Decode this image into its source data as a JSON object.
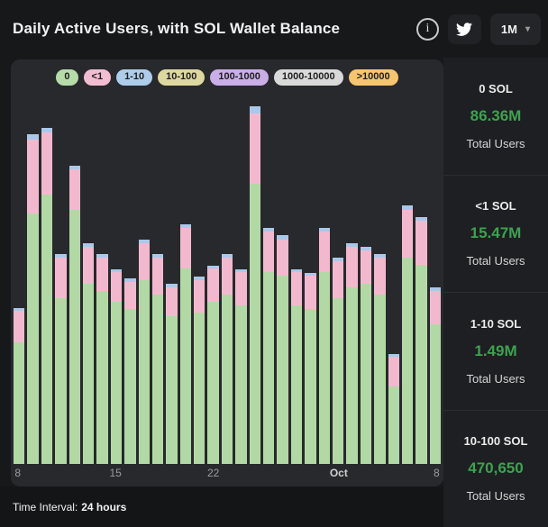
{
  "header": {
    "title": "Daily Active Users, with SOL Wallet Balance",
    "interval_dropdown": {
      "value": "1M",
      "chevron": "▾"
    }
  },
  "chart_data": {
    "type": "bar",
    "stacked": true,
    "title": "Daily Active Users, with SOL Wallet Balance",
    "grid": false,
    "legend_position": "top",
    "y_axis_visible": false,
    "unit": "percent of plot height (no y-axis tick labels shown in chart)",
    "x_range": [
      "Sep 8",
      "Oct 8"
    ],
    "legend": [
      {
        "label": "0",
        "color": "#b7dcaa"
      },
      {
        "label": "<1",
        "color": "#f3bdd1"
      },
      {
        "label": "1-10",
        "color": "#aecdea"
      },
      {
        "label": "10-100",
        "color": "#ddd8a0"
      },
      {
        "label": "100-1000",
        "color": "#c9aee8"
      },
      {
        "label": "1000-10000",
        "color": "#d9d9d9"
      },
      {
        "label": ">10000",
        "color": "#f6c571"
      }
    ],
    "series": [
      {
        "name": "0 SOL",
        "color": "#b2d9a5"
      },
      {
        "name": "<1 SOL",
        "color": "#f2b9ce"
      },
      {
        "name": "1-10 SOL",
        "color": "#a9c9ea"
      }
    ],
    "bars": [
      [
        33,
        8.5,
        0.8
      ],
      [
        68,
        20,
        1.5
      ],
      [
        73,
        17,
        1.2
      ],
      [
        45,
        11,
        0.9
      ],
      [
        69,
        11,
        1.0
      ],
      [
        49,
        10,
        0.9
      ],
      [
        47,
        9,
        0.9
      ],
      [
        44,
        8,
        0.8
      ],
      [
        42,
        7.5,
        0.8
      ],
      [
        50,
        10,
        0.9
      ],
      [
        46,
        10,
        0.9
      ],
      [
        40,
        8,
        0.8
      ],
      [
        53,
        11,
        1.0
      ],
      [
        41,
        9,
        0.8
      ],
      [
        44,
        9,
        0.9
      ],
      [
        46,
        10,
        0.9
      ],
      [
        43,
        9,
        0.8
      ],
      [
        76,
        19,
        2.0
      ],
      [
        52,
        11,
        1.0
      ],
      [
        51,
        10,
        1.0
      ],
      [
        43,
        9,
        0.9
      ],
      [
        42,
        9,
        0.8
      ],
      [
        52,
        11,
        1.0
      ],
      [
        45,
        10,
        0.9
      ],
      [
        48,
        11,
        1.0
      ],
      [
        49,
        9,
        0.9
      ],
      [
        46,
        10,
        0.9
      ],
      [
        21,
        8,
        0.8
      ],
      [
        56,
        13,
        1.2
      ],
      [
        54,
        12,
        1.0
      ],
      [
        38,
        9,
        0.9
      ]
    ],
    "x_ticks": [
      {
        "label": "8",
        "pos": 0.016,
        "strong": false
      },
      {
        "label": "15",
        "pos": 0.242,
        "strong": false
      },
      {
        "label": "22",
        "pos": 0.468,
        "strong": false
      },
      {
        "label": "Oct",
        "pos": 0.758,
        "strong": true
      },
      {
        "label": "8",
        "pos": 0.984,
        "strong": false
      }
    ]
  },
  "sidebar": {
    "panels": [
      {
        "label": "0 SOL",
        "value": "86.36M",
        "sub": "Total Users"
      },
      {
        "label": "<1 SOL",
        "value": "15.47M",
        "sub": "Total Users"
      },
      {
        "label": "1-10 SOL",
        "value": "1.49M",
        "sub": "Total Users"
      },
      {
        "label": "10-100 SOL",
        "value": "470,650",
        "sub": "Total Users"
      }
    ]
  },
  "footer": {
    "label": "Time Interval:",
    "value": "24 hours"
  },
  "icons": {
    "info": "i"
  },
  "colors": {
    "value_green": "#3da24f",
    "bar_green": "#b2d9a5",
    "bar_pink": "#f2b9ce",
    "bar_blue": "#a9c9ea",
    "card_bg": "#28292c",
    "page_bg": "#17181a"
  }
}
